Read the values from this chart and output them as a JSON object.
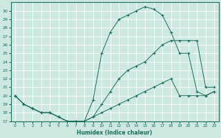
{
  "xlabel": "Humidex (Indice chaleur)",
  "background_color": "#cce8e0",
  "grid_color": "#ffffff",
  "line_color": "#1a6b5a",
  "xlim": [
    -0.5,
    23.5
  ],
  "ylim": [
    17,
    31
  ],
  "x_ticks": [
    0,
    1,
    2,
    3,
    4,
    5,
    6,
    7,
    8,
    9,
    10,
    11,
    12,
    13,
    14,
    15,
    16,
    17,
    18,
    19,
    20,
    21,
    22,
    23
  ],
  "y_ticks": [
    17,
    18,
    19,
    20,
    21,
    22,
    23,
    24,
    25,
    26,
    27,
    28,
    29,
    30
  ],
  "series": [
    {
      "x": [
        0,
        1,
        2,
        3,
        4,
        5,
        6,
        7,
        8,
        9,
        10,
        11,
        12,
        13,
        14,
        15,
        16,
        17,
        18,
        19,
        20,
        21,
        22,
        23
      ],
      "y": [
        20,
        19,
        18.5,
        18,
        18,
        17.5,
        17,
        17,
        17,
        19.5,
        25,
        27.5,
        29,
        29.5,
        30,
        30.5,
        30.2,
        29.5,
        27.5,
        25,
        25,
        20.5,
        20,
        20.5
      ]
    },
    {
      "x": [
        0,
        1,
        2,
        3,
        4,
        5,
        6,
        7,
        8,
        9,
        10,
        11,
        12,
        13,
        14,
        15,
        16,
        17,
        18,
        19,
        20,
        21,
        22,
        23
      ],
      "y": [
        20,
        19,
        18.5,
        18,
        18,
        17.5,
        17,
        17,
        17,
        17.5,
        19,
        20.5,
        22,
        23,
        23.5,
        24,
        25,
        26,
        26.5,
        26.5,
        26.5,
        26.5,
        21,
        21
      ]
    },
    {
      "x": [
        0,
        1,
        2,
        3,
        4,
        5,
        6,
        7,
        8,
        9,
        10,
        11,
        12,
        13,
        14,
        15,
        16,
        17,
        18,
        19,
        20,
        21,
        22,
        23
      ],
      "y": [
        20,
        19,
        18.5,
        18,
        18,
        17.5,
        17,
        17,
        17,
        17.5,
        18,
        18.5,
        19,
        19.5,
        20,
        20.5,
        21,
        21.5,
        22,
        20,
        20,
        20,
        20,
        20.5
      ]
    }
  ]
}
